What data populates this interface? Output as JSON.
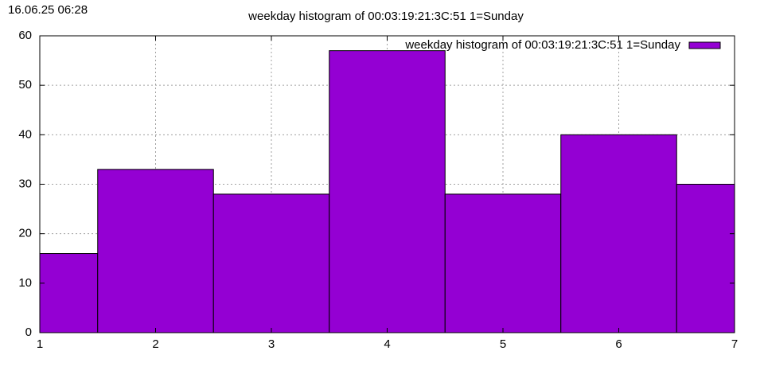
{
  "timestamp": "16.06.25 06:28",
  "chart_data": {
    "type": "bar",
    "title": "weekday histogram of 00:03:19:21:3C:51 1=Sunday",
    "x": [
      1,
      2,
      3,
      4,
      5,
      6,
      7
    ],
    "series": [
      {
        "name": "weekday histogram of 00:03:19:21:3C:51 1=Sunday",
        "color": "#9400d3",
        "values": [
          16,
          33,
          28,
          57,
          28,
          40,
          30
        ]
      }
    ],
    "xlim": [
      1,
      7
    ],
    "xticks": [
      1,
      2,
      3,
      4,
      5,
      6,
      7
    ],
    "ylim": [
      0,
      60
    ],
    "yticks": [
      0,
      10,
      20,
      30,
      40,
      50,
      60
    ],
    "grid": true,
    "legend": "top-right"
  }
}
